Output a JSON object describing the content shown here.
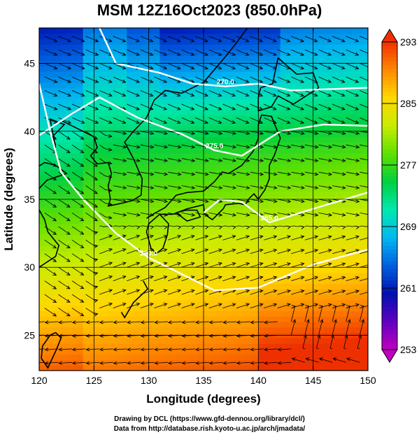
{
  "title": "MSM 12Z16Oct2023 (850.0hPa)",
  "xlabel": "Longitude (degrees)",
  "ylabel": "Latitude  (degrees)",
  "credits": {
    "line1": "Drawing by DCL (https://www.gfd-dennou.org/library/dcl/)",
    "line2": "Data from http://database.rish.kyoto-u.ac.jp/arch/jmadata/"
  },
  "map": {
    "xlim": [
      120,
      150
    ],
    "ylim": [
      22.4,
      47.6
    ],
    "xticks": [
      120,
      125,
      130,
      135,
      140,
      145,
      150
    ],
    "yticks": [
      25,
      30,
      35,
      40,
      45
    ],
    "grid": true,
    "field": "temperature (K) with wind streamlines"
  },
  "colorbar": {
    "min": 253,
    "max": 293,
    "ticks": [
      293,
      285,
      277,
      269,
      261,
      253
    ],
    "colors": [
      "#c000c0",
      "#6000c0",
      "#0010b0",
      "#0060e0",
      "#00b8f0",
      "#00e8b0",
      "#00d040",
      "#60e000",
      "#c8ec00",
      "#ffd800",
      "#ff8800",
      "#ee3000"
    ]
  },
  "contours": [
    {
      "label": "270.0",
      "points": [
        [
          125.5,
          47.6
        ],
        [
          127,
          45
        ],
        [
          131,
          44.3
        ],
        [
          134,
          43.5
        ],
        [
          137,
          43.3
        ],
        [
          140,
          43.5
        ],
        [
          143,
          43
        ],
        [
          150,
          43.2
        ]
      ]
    },
    {
      "label": "275.0",
      "points": [
        [
          120,
          39.7
        ],
        [
          123,
          41.3
        ],
        [
          125.5,
          42.5
        ],
        [
          129,
          41
        ],
        [
          133,
          39.8
        ],
        [
          136,
          38.6
        ],
        [
          138.5,
          38.2
        ],
        [
          142,
          40
        ],
        [
          146,
          40.5
        ],
        [
          150,
          40.4
        ]
      ]
    },
    {
      "label": "280.0",
      "points": [
        [
          120,
          43.5
        ],
        [
          121,
          40
        ],
        [
          122,
          37
        ],
        [
          124,
          35
        ],
        [
          127,
          32.5
        ],
        [
          130,
          30.7
        ],
        [
          133,
          29.5
        ],
        [
          136,
          28.3
        ],
        [
          140,
          28.5
        ],
        [
          145,
          30.2
        ],
        [
          150,
          31.3
        ]
      ]
    },
    {
      "label": "285.0",
      "points": [
        [
          135,
          34
        ],
        [
          136.5,
          35
        ],
        [
          138.5,
          34.8
        ],
        [
          141,
          33.3
        ],
        [
          145,
          34.3
        ],
        [
          150,
          35.5
        ]
      ]
    }
  ],
  "streamline_note": "Wind streamlines drawn over the field",
  "coastline_note": "East Asia and Japan coastlines"
}
